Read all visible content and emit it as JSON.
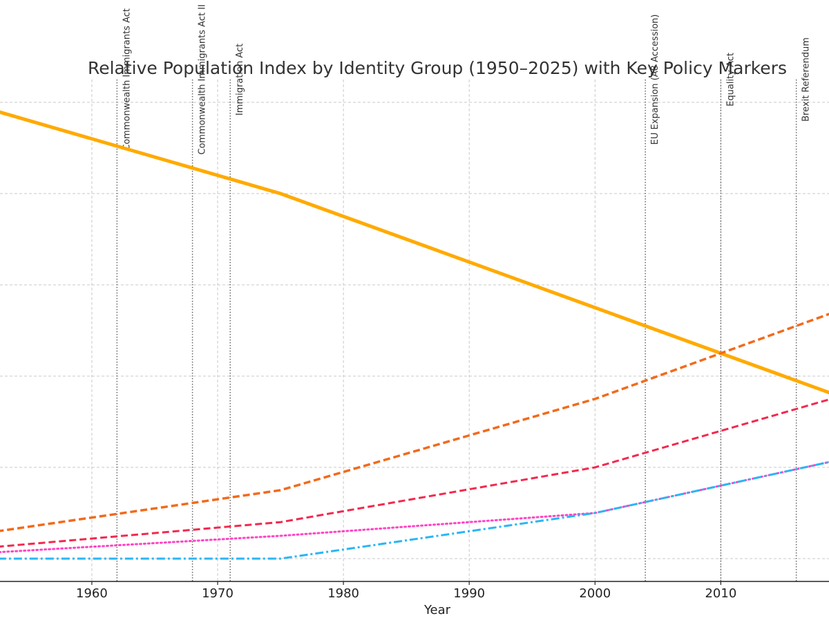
{
  "chart_data": {
    "type": "line",
    "title": "Relative Population Index by Identity Group (1950–2025) with Key Policy Markers",
    "xlabel": "Year",
    "ylabel": "",
    "xlim": [
      1952.7,
      2018.6
    ],
    "ylim": [
      -5,
      105
    ],
    "grid": true,
    "x_ticks": [
      1960,
      1970,
      1980,
      1990,
      2000,
      2010
    ],
    "y_gridlines": [
      0,
      20,
      40,
      60,
      80,
      100
    ],
    "x": [
      1950,
      1975,
      2000,
      2025
    ],
    "series": [
      {
        "color": "#FFAA00",
        "style": "solid",
        "values": [
          100,
          80,
          55,
          30
        ]
      },
      {
        "color": "#F26A1B",
        "style": "dashed",
        "values": [
          5,
          15,
          35,
          60
        ]
      },
      {
        "color": "#F2294E",
        "style": "dashed",
        "values": [
          2,
          8,
          20,
          40
        ]
      },
      {
        "color": "#FF44C4",
        "style": "dotted",
        "values": [
          1,
          5,
          10,
          25
        ]
      },
      {
        "color": "#29B6F6",
        "style": "dashdot",
        "values": [
          0,
          0,
          10,
          25
        ]
      }
    ],
    "policy_markers": [
      {
        "year": 1962,
        "label": "Commonwealth Immigrants Act"
      },
      {
        "year": 1968,
        "label": "Commonwealth Immigrants Act II"
      },
      {
        "year": 1971,
        "label": "Immigration Act"
      },
      {
        "year": 2004,
        "label": "EU Expansion (A8 Accession)"
      },
      {
        "year": 2010,
        "label": "Equality Act"
      },
      {
        "year": 2016,
        "label": "Brexit Referendum"
      }
    ]
  }
}
